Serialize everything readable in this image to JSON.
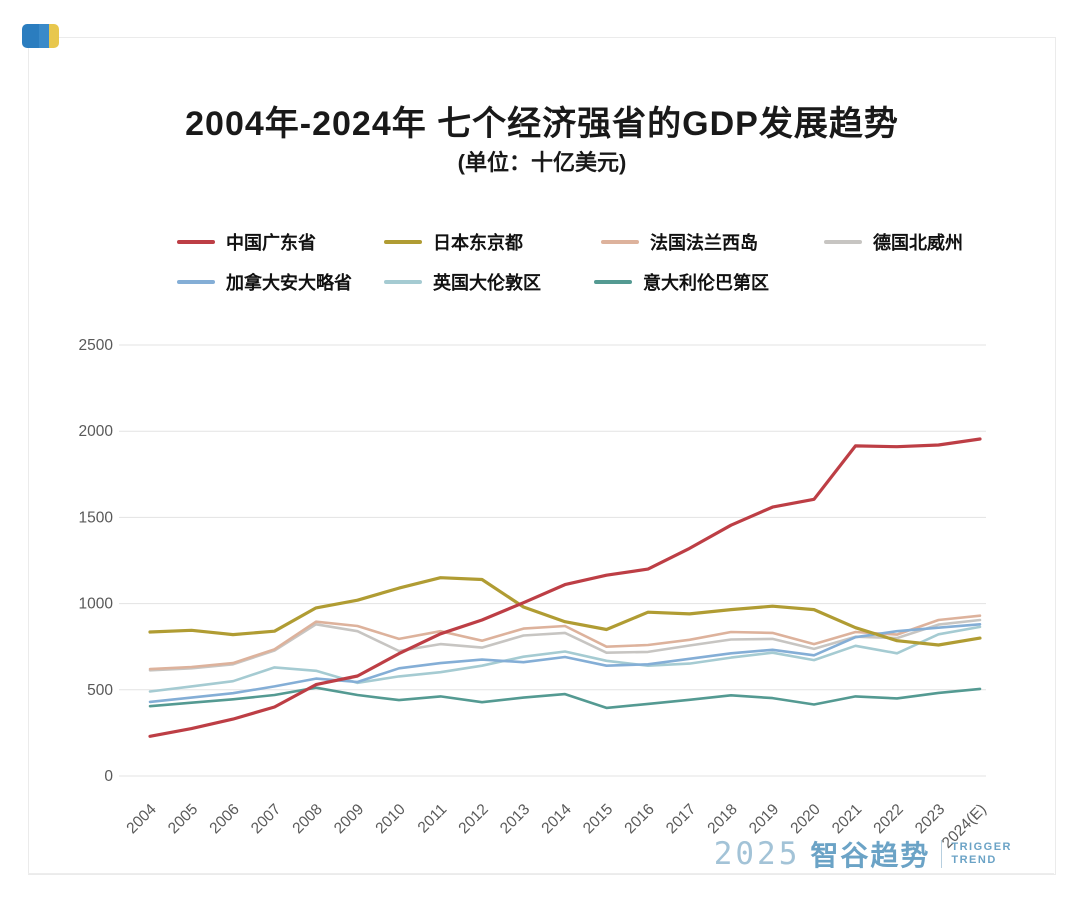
{
  "header": {
    "title": "2004年-2024年 七个经济强省的GDP发展趋势",
    "subtitle": "(单位：十亿美元)"
  },
  "chart_data": {
    "type": "line",
    "title": "2004年-2024年 七个经济强省的GDP发展趋势",
    "unit_label": "十亿美元",
    "categories": [
      "2004",
      "2005",
      "2006",
      "2007",
      "2008",
      "2009",
      "2010",
      "2011",
      "2012",
      "2013",
      "2014",
      "2015",
      "2016",
      "2017",
      "2018",
      "2019",
      "2020",
      "2021",
      "2022",
      "2023",
      "2024(E)"
    ],
    "y_ticks": [
      0,
      500,
      1000,
      1500,
      2000,
      2500
    ],
    "ylim": [
      0,
      2500
    ],
    "grid": true,
    "legend_position": "top-left-two-rows",
    "series": [
      {
        "name": "中国广东省",
        "color": "#bd3e45",
        "width": 3.2,
        "values": [
          230,
          275,
          330,
          400,
          530,
          580,
          710,
          825,
          905,
          1005,
          1110,
          1165,
          1200,
          1320,
          1455,
          1560,
          1605,
          1915,
          1910,
          1920,
          1955
        ]
      },
      {
        "name": "日本东京都",
        "color": "#b09c33",
        "width": 3.2,
        "values": [
          835,
          845,
          820,
          840,
          975,
          1020,
          1090,
          1150,
          1140,
          980,
          895,
          850,
          950,
          940,
          965,
          985,
          965,
          860,
          785,
          760,
          800
        ]
      },
      {
        "name": "法国法兰西岛",
        "color": "#ddb29c",
        "width": 2.6,
        "values": [
          620,
          632,
          655,
          735,
          895,
          870,
          795,
          840,
          785,
          855,
          870,
          750,
          760,
          790,
          835,
          830,
          765,
          835,
          820,
          905,
          930
        ]
      },
      {
        "name": "德国北威州",
        "color": "#c7c5c2",
        "width": 2.6,
        "values": [
          613,
          625,
          648,
          728,
          880,
          840,
          725,
          765,
          745,
          815,
          830,
          715,
          720,
          757,
          792,
          795,
          737,
          808,
          800,
          878,
          905
        ]
      },
      {
        "name": "加拿大安大略省",
        "color": "#84aed6",
        "width": 2.6,
        "values": [
          430,
          455,
          480,
          520,
          565,
          545,
          625,
          655,
          675,
          660,
          690,
          640,
          648,
          680,
          712,
          732,
          700,
          805,
          840,
          860,
          880
        ]
      },
      {
        "name": "英国大伦敦区",
        "color": "#a5cbd2",
        "width": 2.6,
        "values": [
          490,
          520,
          550,
          630,
          610,
          540,
          578,
          602,
          640,
          692,
          722,
          668,
          640,
          652,
          687,
          715,
          672,
          755,
          712,
          822,
          865
        ]
      },
      {
        "name": "意大利伦巴第区",
        "color": "#549a92",
        "width": 2.6,
        "values": [
          405,
          425,
          445,
          470,
          512,
          470,
          440,
          462,
          428,
          455,
          475,
          395,
          418,
          442,
          468,
          452,
          415,
          462,
          450,
          482,
          505
        ]
      }
    ],
    "legend_rows": [
      [
        0,
        1,
        2,
        3
      ],
      [
        4,
        5,
        6
      ]
    ],
    "draw_order": [
      3,
      2,
      5,
      6,
      4,
      1,
      0
    ]
  },
  "footer": {
    "year": "2025",
    "brand_cn": "智谷趋势",
    "brand_en_line1": "TRIGGER",
    "brand_en_line2": "TREND"
  },
  "colors": {
    "grid": "#e3e3e3",
    "tick_text": "#595959",
    "title_text": "#191919",
    "logo_blue": "#6ba3c6",
    "icon_blue": "#2b7dbf",
    "icon_yellow": "#e8c74d"
  }
}
